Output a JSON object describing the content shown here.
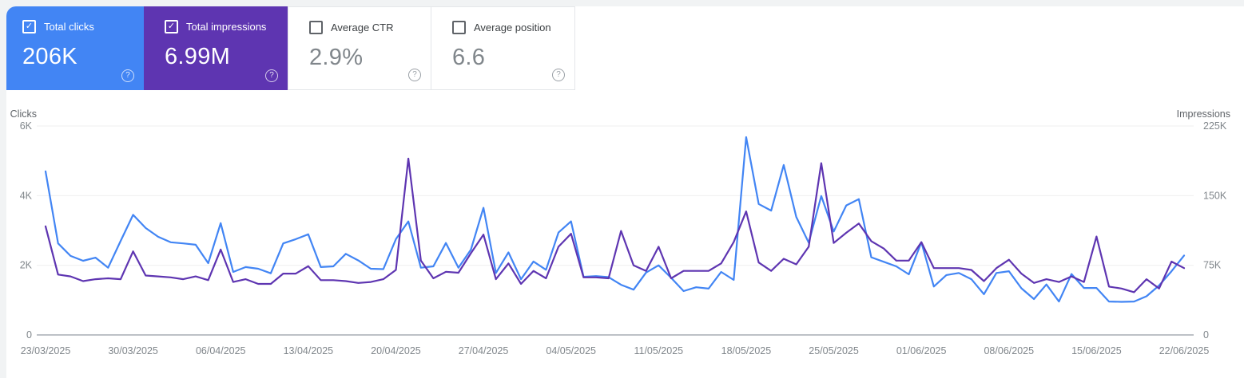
{
  "icons": {
    "help": "?",
    "check": "✓"
  },
  "cards": [
    {
      "label": "Total clicks",
      "value": "206K",
      "selected": true,
      "checked": true,
      "color": "#4285f4"
    },
    {
      "label": "Total impressions",
      "value": "6.99M",
      "selected": true,
      "checked": true,
      "color": "#5e35b1"
    },
    {
      "label": "Average CTR",
      "value": "2.9%",
      "selected": false,
      "checked": false
    },
    {
      "label": "Average position",
      "value": "6.6",
      "selected": false,
      "checked": false
    }
  ],
  "chart_data": {
    "type": "line",
    "x_start_date": "23/03/2025",
    "x_end_date": "22/06/2025",
    "x_tick_labels": [
      "23/03/2025",
      "30/03/2025",
      "06/04/2025",
      "13/04/2025",
      "20/04/2025",
      "27/04/2025",
      "04/05/2025",
      "11/05/2025",
      "18/05/2025",
      "25/05/2025",
      "01/06/2025",
      "08/06/2025",
      "15/06/2025",
      "22/06/2025"
    ],
    "left_axis": {
      "title": "Clicks",
      "ticks": [
        "0",
        "2K",
        "4K",
        "6K"
      ],
      "min": 0,
      "max": 6000
    },
    "right_axis": {
      "title": "Impressions",
      "ticks": [
        "0",
        "75K",
        "150K",
        "225K"
      ],
      "min": 0,
      "max": 225000
    },
    "grid": true,
    "legend_position": "none",
    "series": [
      {
        "name": "Total clicks",
        "axis": "left",
        "color": "#4285f4",
        "values": [
          4700,
          2630,
          2270,
          2130,
          2220,
          1930,
          2700,
          3450,
          3070,
          2820,
          2660,
          2630,
          2590,
          2060,
          3210,
          1810,
          1950,
          1900,
          1770,
          2630,
          2750,
          2890,
          1950,
          1970,
          2330,
          2140,
          1900,
          1890,
          2750,
          3260,
          1930,
          1970,
          2640,
          1930,
          2450,
          3650,
          1780,
          2370,
          1600,
          2110,
          1870,
          2940,
          3260,
          1670,
          1690,
          1660,
          1440,
          1300,
          1790,
          2000,
          1640,
          1260,
          1370,
          1330,
          1810,
          1580,
          5680,
          3760,
          3570,
          4880,
          3390,
          2650,
          3990,
          2970,
          3720,
          3900,
          2230,
          2100,
          1970,
          1740,
          2660,
          1390,
          1720,
          1780,
          1600,
          1170,
          1780,
          1830,
          1340,
          1030,
          1450,
          960,
          1750,
          1350,
          1350,
          960,
          950,
          960,
          1110,
          1420,
          1830,
          2280
        ]
      },
      {
        "name": "Total impressions",
        "axis": "right",
        "color": "#5e35b1",
        "values": [
          117000,
          65000,
          63000,
          58000,
          60000,
          61000,
          60000,
          90000,
          64000,
          63000,
          62000,
          60000,
          63000,
          59000,
          92000,
          57000,
          60000,
          55000,
          55000,
          66000,
          66000,
          74000,
          59000,
          59000,
          58000,
          56000,
          57000,
          60000,
          70000,
          190000,
          80000,
          61000,
          68000,
          67000,
          88000,
          108000,
          60000,
          77000,
          55000,
          69000,
          61000,
          95000,
          109000,
          62000,
          62000,
          61000,
          112000,
          75000,
          69000,
          95000,
          61000,
          69000,
          69000,
          69000,
          77000,
          100000,
          133000,
          78000,
          69000,
          82000,
          76000,
          95000,
          185000,
          99000,
          110000,
          120000,
          101000,
          93000,
          80000,
          80000,
          100000,
          72000,
          72000,
          72000,
          70000,
          58000,
          72000,
          81000,
          66000,
          56000,
          60000,
          57000,
          63000,
          57000,
          106000,
          52000,
          50000,
          46000,
          60000,
          50000,
          79000,
          72000
        ]
      }
    ]
  }
}
